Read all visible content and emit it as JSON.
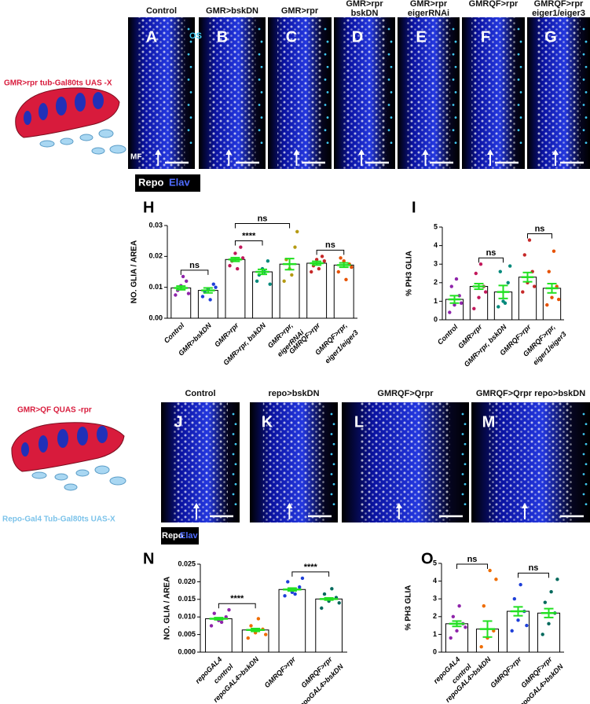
{
  "schematics": {
    "top": "GMR>rpr tub-Gal80ts UAS -X",
    "bottom_red": "GMR>QF  QUAS -rpr",
    "bottom_blue": "Repo-Gal4  Tub-Gal80ts UAS-X"
  },
  "stain_legend": {
    "repo": "Repo",
    "elav": "Elav"
  },
  "image_annotations": {
    "os": "OS",
    "mf": "MF"
  },
  "image_panels_top": [
    {
      "letter": "A",
      "title": "Control"
    },
    {
      "letter": "B",
      "title": "GMR>bskDN"
    },
    {
      "letter": "C",
      "title": "GMR>rpr"
    },
    {
      "letter": "D",
      "title": "GMR>rpr bskDN"
    },
    {
      "letter": "E",
      "title": "GMR>rpr eigerRNAi"
    },
    {
      "letter": "F",
      "title": "GMRQF>rpr"
    },
    {
      "letter": "G",
      "title": "GMRQF>rpr eiger1/eiger3"
    }
  ],
  "image_panels_bottom": [
    {
      "letter": "J",
      "title": "Control"
    },
    {
      "letter": "K",
      "title": "repo>bskDN"
    },
    {
      "letter": "L",
      "title": "GMRQF>Qrpr"
    },
    {
      "letter": "M",
      "title": "GMRQF>Qrpr repo>bskDN"
    }
  ],
  "chart_data": [
    {
      "type": "bar",
      "panel": "H",
      "ylabel": "NO. GLIA / AREA",
      "ylim": [
        0,
        0.03
      ],
      "yticks": [
        {
          "value": 0,
          "label": "0.00"
        },
        0.01,
        0.02,
        0.03
      ],
      "categories": [
        [
          "Control"
        ],
        [
          "GMR>bskDN"
        ],
        [
          "GMR>rpr"
        ],
        [
          "GMR>rpr, bskDN"
        ],
        [
          "GMR>rpr,",
          "eigerRNAi"
        ],
        [
          "GMRQF>rpr"
        ],
        [
          "GMRQF>rpr,",
          "eiger1/eiger3"
        ]
      ],
      "values": [
        0.0098,
        0.009,
        0.019,
        0.015,
        0.0175,
        0.0178,
        0.0172
      ],
      "errors": [
        0.0006,
        0.0008,
        0.0006,
        0.0008,
        0.0018,
        0.0006,
        0.0007
      ],
      "points": [
        [
          0.0075,
          0.0105,
          0.012,
          0.009,
          0.0135,
          0.008
        ],
        [
          0.007,
          0.0095,
          0.011,
          0.0085,
          0.006,
          0.01
        ],
        [
          0.017,
          0.021,
          0.023,
          0.0185,
          0.016,
          0.0195
        ],
        [
          0.012,
          0.016,
          0.0185,
          0.014,
          0.015,
          0.011
        ],
        [
          0.012,
          0.016,
          0.023,
          0.019,
          0.014,
          0.028
        ],
        [
          0.015,
          0.019,
          0.02,
          0.017,
          0.016,
          0.0185
        ],
        [
          0.015,
          0.0185,
          0.0175,
          0.0195,
          0.0125,
          0.0165
        ]
      ],
      "point_colors": [
        "#8e24aa",
        "#1e3fd8",
        "#c2185b",
        "#00897b",
        "#b59a12",
        "#c62828",
        "#e65100"
      ],
      "comparisons": [
        {
          "pair": [
            0,
            1
          ],
          "label": "ns"
        },
        {
          "pair": [
            2,
            3
          ],
          "label": "****"
        },
        {
          "pair": [
            2,
            4
          ],
          "label": "ns"
        },
        {
          "pair": [
            5,
            6
          ],
          "label": "ns"
        }
      ]
    },
    {
      "type": "bar",
      "panel": "I",
      "ylabel": "% PH3 GLIA",
      "ylim": [
        0,
        5
      ],
      "yticks": [
        0,
        1,
        2,
        3,
        4,
        5
      ],
      "categories": [
        [
          "Control"
        ],
        [
          "GMR>rpr"
        ],
        [
          "GMR>rpr, bskDN"
        ],
        [
          "GMRQF>rpr"
        ],
        [
          "GMRQF>rpr,",
          "eiger1/eiger3"
        ]
      ],
      "values": [
        1.1,
        1.8,
        1.5,
        2.3,
        1.7
      ],
      "errors": [
        0.2,
        0.15,
        0.35,
        0.25,
        0.25
      ],
      "points": [
        [
          0.4,
          0.8,
          1.3,
          1.8,
          2.2,
          0.9
        ],
        [
          0.6,
          1.2,
          1.8,
          2.5,
          3.0,
          1.5
        ],
        [
          0.7,
          1.0,
          2.0,
          2.6,
          0.9,
          2.9
        ],
        [
          1.5,
          2.0,
          2.6,
          3.5,
          4.3,
          1.8
        ],
        [
          0.8,
          1.2,
          1.8,
          2.6,
          3.7,
          1.1
        ]
      ],
      "point_colors": [
        "#8e24aa",
        "#c2185b",
        "#00897b",
        "#c62828",
        "#e65100"
      ],
      "comparisons": [
        {
          "pair": [
            1,
            2
          ],
          "label": "ns"
        },
        {
          "pair": [
            3,
            4
          ],
          "label": "ns"
        }
      ]
    },
    {
      "type": "bar",
      "panel": "N",
      "ylabel": "NO. GLIA / AREA",
      "ylim": [
        0,
        0.025
      ],
      "yticks": [
        {
          "value": 0,
          "label": "0.000"
        },
        0.005,
        {
          "value": 0.01,
          "label": "0.010"
        },
        0.015,
        {
          "value": 0.02,
          "label": "0.020"
        },
        0.025
      ],
      "categories": [
        [
          "repoGAL4",
          "control"
        ],
        [
          "repoGAL4>bskDN"
        ],
        [
          "GMRQF>rpr"
        ],
        [
          "GMRQF>rpr",
          "repoGAL4>bskDN"
        ]
      ],
      "values": [
        0.0095,
        0.0063,
        0.0178,
        0.0151
      ],
      "errors": [
        0.0003,
        0.0004,
        0.0004,
        0.0003
      ],
      "points": [
        [
          0.0075,
          0.009,
          0.01,
          0.011,
          0.0085,
          0.012
        ],
        [
          0.004,
          0.0055,
          0.0065,
          0.0075,
          0.0095,
          0.005
        ],
        [
          0.016,
          0.017,
          0.0185,
          0.02,
          0.0165,
          0.021
        ],
        [
          0.0125,
          0.0145,
          0.0155,
          0.0165,
          0.018,
          0.014
        ]
      ],
      "point_colors": [
        "#8e24aa",
        "#ef6c00",
        "#1e3fd8",
        "#00695c"
      ],
      "comparisons": [
        {
          "pair": [
            0,
            1
          ],
          "label": "****"
        },
        {
          "pair": [
            2,
            3
          ],
          "label": "****"
        }
      ]
    },
    {
      "type": "bar",
      "panel": "O",
      "ylabel": "% PH3 GLIA",
      "ylim": [
        0,
        5
      ],
      "yticks": [
        0,
        1,
        2,
        3,
        4,
        5
      ],
      "categories": [
        [
          "repoGAL4",
          "control"
        ],
        [
          "repoGAL4>bskDN"
        ],
        [
          "GMRQF>rpr"
        ],
        [
          "GMRQF>rpr",
          "repoGAL4>bskDN"
        ]
      ],
      "values": [
        1.6,
        1.3,
        2.3,
        2.2
      ],
      "errors": [
        0.15,
        0.45,
        0.25,
        0.25
      ],
      "points": [
        [
          0.8,
          1.2,
          1.6,
          2.0,
          2.6,
          1.4
        ],
        [
          0.3,
          0.8,
          1.2,
          2.6,
          4.6,
          4.1
        ],
        [
          1.2,
          1.8,
          2.3,
          3.0,
          3.8,
          1.5
        ],
        [
          1.0,
          1.6,
          2.2,
          2.8,
          3.4,
          4.1
        ]
      ],
      "point_colors": [
        "#8e24aa",
        "#ef6c00",
        "#1e3fd8",
        "#00695c"
      ],
      "comparisons": [
        {
          "pair": [
            0,
            1
          ],
          "label": "ns"
        },
        {
          "pair": [
            2,
            3
          ],
          "label": "ns"
        }
      ]
    }
  ]
}
